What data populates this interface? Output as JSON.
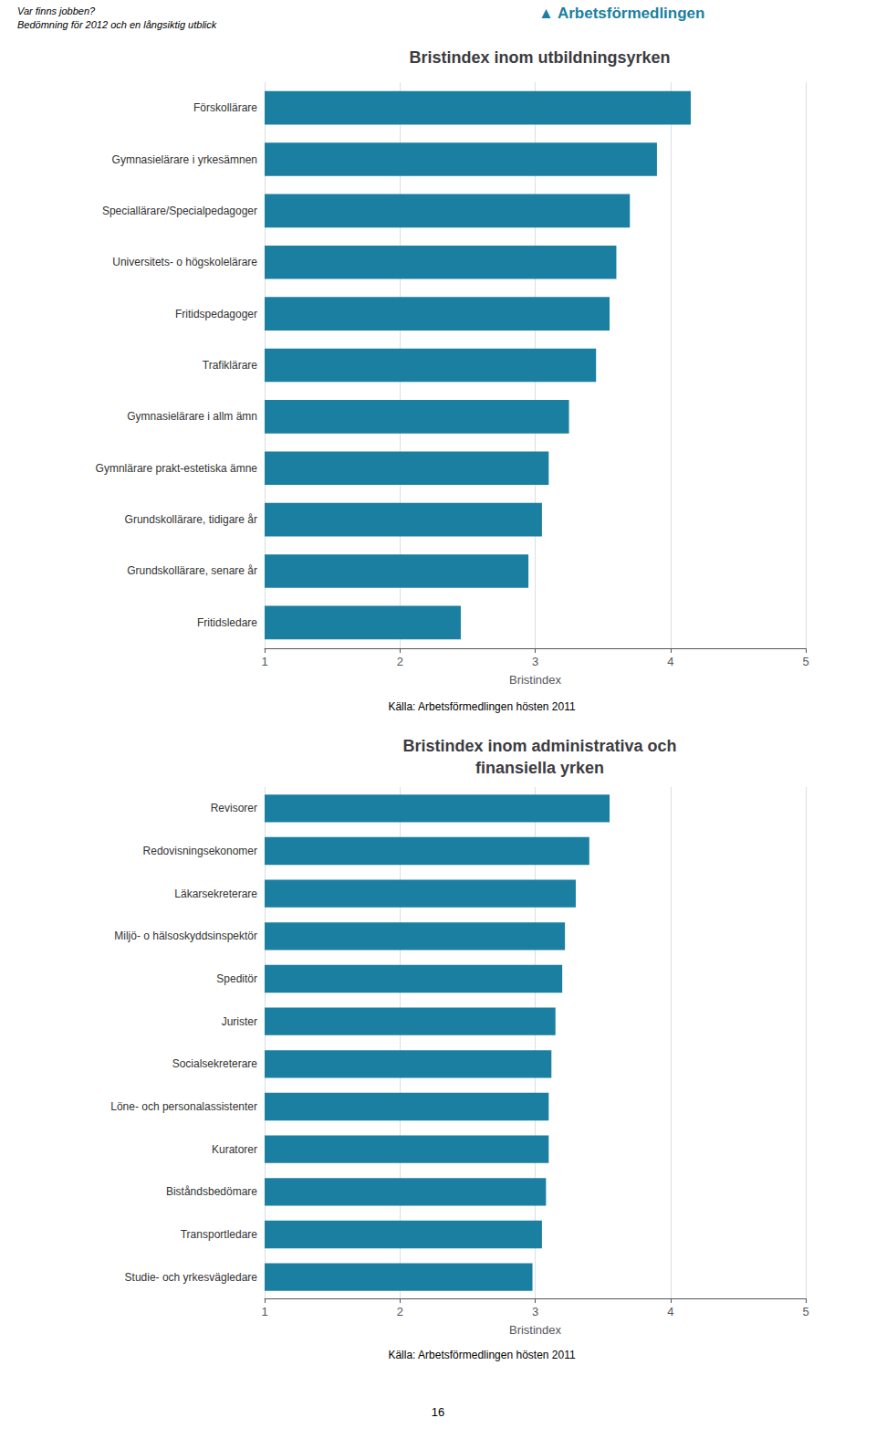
{
  "chart_data": [
    {
      "type": "bar",
      "orientation": "horizontal",
      "title": "Bristindex inom utbildningsyrken",
      "categories": [
        "Fritidsledare",
        "Grundskollärare, senare år",
        "Grundskollärare, tidigare år",
        "Gymnlärare prakt-estetiska ämne",
        "Gymnasielärare i allm ämn",
        "Trafiklärare",
        "Fritidspedagoger",
        "Universitets- o högskolelärare",
        "Speciallärare/Specialpedagoger",
        "Gymnasielärare i yrkesämnen",
        "Förskollärare"
      ],
      "values": [
        2.45,
        2.95,
        3.05,
        3.1,
        3.25,
        3.45,
        3.55,
        3.6,
        3.7,
        3.9,
        4.15
      ],
      "color": "#1a7fa0",
      "xlabel": "Bristindex",
      "xlim": [
        1,
        5
      ],
      "xticks": [
        1,
        2,
        3,
        4,
        5
      ],
      "grid": true,
      "annotations": [
        "Källa: Arbetsförmedlingen hösten 2011"
      ]
    },
    {
      "type": "bar",
      "orientation": "horizontal",
      "title": "Bristindex inom administrativa och\nfinansiella yrken",
      "categories": [
        "Studie- och yrkesvägledare",
        "Transportledare",
        "Biståndsbedömare",
        "Kuratorer",
        "Löne- och personalassistenter",
        "Socialsekreterare",
        "Jurister",
        "Speditör",
        "Miljö- o hälsoskyddsinspektör",
        "Läkarsekreterare",
        "Redovisningsekonomer",
        "Revisorer"
      ],
      "values": [
        2.98,
        3.05,
        3.08,
        3.1,
        3.1,
        3.12,
        3.15,
        3.2,
        3.22,
        3.3,
        3.4,
        3.55
      ],
      "color": "#1a7fa0",
      "xlabel": "Bristindex",
      "xlim": [
        1,
        5
      ],
      "xticks": [
        1,
        2,
        3,
        4,
        5
      ],
      "grid": true,
      "annotations": [
        "Källa: Arbetsförmedlingen hösten 2011"
      ]
    }
  ],
  "annotations": [
    "Var finns jobben?",
    "Bedömning för 2012 och en långsiktig utblick",
    "▲ Arbetsförmedlingen",
    "16"
  ]
}
